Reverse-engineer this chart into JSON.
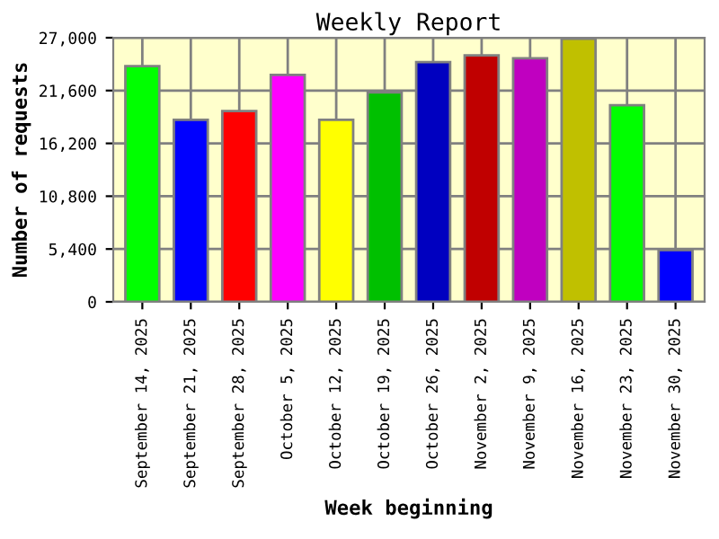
{
  "chart_data": {
    "type": "bar",
    "title": "Weekly Report",
    "xlabel": "Week beginning",
    "ylabel": "Number of requests",
    "categories": [
      "September 14, 2025",
      "September 21, 2025",
      "September 28, 2025",
      "October 5, 2025",
      "October 12, 2025",
      "October 19, 2025",
      "October 26, 2025",
      "November 2, 2025",
      "November 9, 2025",
      "November 16, 2025",
      "November 23, 2025",
      "November 30, 2025"
    ],
    "values": [
      24100,
      18600,
      19500,
      23200,
      18600,
      21400,
      24500,
      25200,
      24900,
      26900,
      20100,
      5300
    ],
    "colors": [
      "#00ff00",
      "#0000ff",
      "#ff0000",
      "#ff00ff",
      "#ffff00",
      "#00c000",
      "#0000c0",
      "#c00000",
      "#c000c0",
      "#c0c000",
      "#00ff00",
      "#0000ff"
    ],
    "ylim": [
      0,
      27000
    ],
    "yticks": [
      0,
      {
        "value": 5400,
        "label": "5,400"
      },
      {
        "value": 10800,
        "label": "10,800"
      },
      {
        "value": 16200,
        "label": "16,200"
      },
      {
        "value": 21600,
        "label": "21,600"
      },
      {
        "value": 27000,
        "label": "27,000"
      }
    ],
    "grid": true
  }
}
